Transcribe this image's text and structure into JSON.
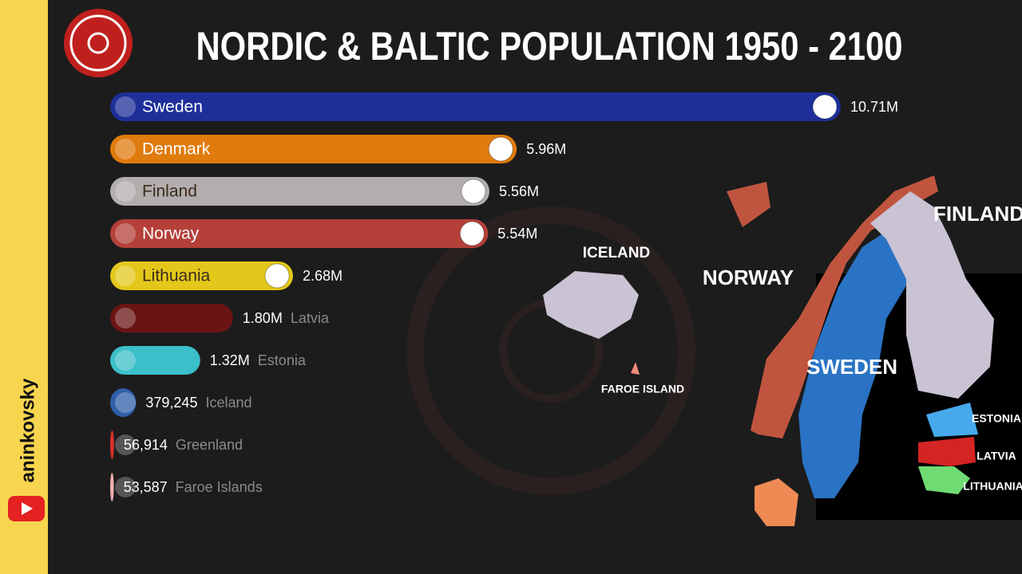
{
  "chart_data": {
    "type": "bar",
    "orientation": "horizontal",
    "title": "NORDIC & BALTIC POPULATION 1950 - 2100",
    "categories": [
      "Sweden",
      "Denmark",
      "Finland",
      "Norway",
      "Lithuania",
      "Latvia",
      "Estonia",
      "Iceland",
      "Greenland",
      "Faroe Islands"
    ],
    "values": [
      10710000,
      5960000,
      5560000,
      5540000,
      2680000,
      1800000,
      1320000,
      379245,
      56914,
      53587
    ],
    "value_labels": [
      "10.71M",
      "5.96M",
      "5.56M",
      "5.54M",
      "2.68M",
      "1.80M",
      "1.32M",
      "379,245",
      "56,914",
      "53,587"
    ],
    "colors": [
      "#1e2f9a",
      "#e07b0e",
      "#b3aeae",
      "#b5403a",
      "#e3c81b",
      "#6b1414",
      "#3bbfc9",
      "#2f5fa8",
      "#d9302c",
      "#f0b0b0"
    ]
  },
  "map_labels": [
    "ICELAND",
    "NORWAY",
    "FINLAND",
    "SWEDEN",
    "FAROE ISLAND",
    "ESTONIA",
    "LATVIA",
    "LITHUANIA"
  ],
  "channel": "aninkovsky"
}
